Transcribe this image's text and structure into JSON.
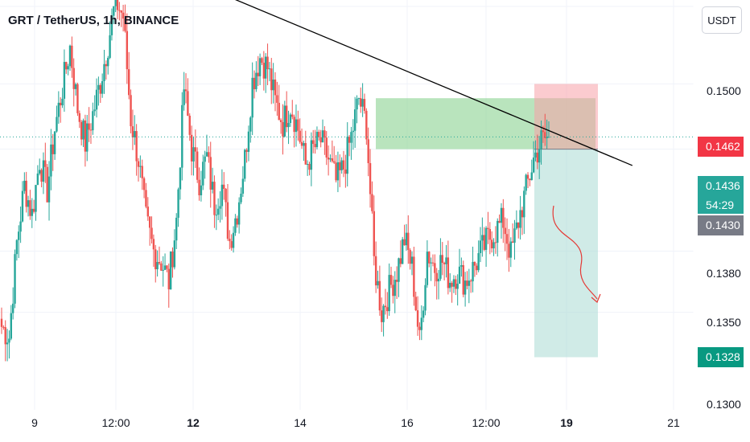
{
  "header": {
    "title": "GRT / TetherUS, 1h, BINANCE",
    "currency": "USDT"
  },
  "colors": {
    "up": "#26a69a",
    "down": "#ef5350",
    "trendline": "#000000",
    "arrow": "#e53935",
    "stop_zone": "#f7a1a8",
    "target_zone": "#a9dad3",
    "entry_zone": "#93d59a"
  },
  "price_labels": {
    "stop": "0.1462",
    "last": "0.1436",
    "countdown": "54:29",
    "entry": "0.1430",
    "target": "0.1328"
  },
  "chart_data": {
    "type": "candlestick",
    "title": "GRT / TetherUS, 1h, BINANCE",
    "x_ticks": [
      {
        "label": "9",
        "bold": false
      },
      {
        "label": "12:00",
        "bold": false
      },
      {
        "label": "12",
        "bold": true
      },
      {
        "label": "14",
        "bold": false
      },
      {
        "label": "16",
        "bold": false
      },
      {
        "label": "12:00",
        "bold": false
      },
      {
        "label": "19",
        "bold": true
      },
      {
        "label": "21",
        "bold": false
      }
    ],
    "y_ticks": [
      "0.1500",
      "0.1380",
      "0.1350",
      "0.1300"
    ],
    "ylim": [
      0.13,
      0.152
    ],
    "grid": true,
    "anchor_closes": [
      0.1343,
      0.1338,
      0.1384,
      0.1412,
      0.1398,
      0.1425,
      0.141,
      0.144,
      0.146,
      0.148,
      0.145,
      0.1433,
      0.1447,
      0.1463,
      0.1482,
      0.1503,
      0.1495,
      0.1445,
      0.1425,
      0.1395,
      0.138,
      0.1375,
      0.1365,
      0.1395,
      0.146,
      0.143,
      0.1415,
      0.1426,
      0.1403,
      0.1412,
      0.1385,
      0.14,
      0.1425,
      0.1463,
      0.1475,
      0.147,
      0.1453,
      0.1443,
      0.1452,
      0.144,
      0.1422,
      0.143,
      0.1434,
      0.1425,
      0.1414,
      0.1421,
      0.1436,
      0.1455,
      0.1442,
      0.1375,
      0.135,
      0.1361,
      0.137,
      0.1386,
      0.1372,
      0.1335,
      0.138,
      0.1372,
      0.1375,
      0.1366,
      0.137,
      0.1365,
      0.1371,
      0.1379,
      0.1386,
      0.139,
      0.1395,
      0.1378,
      0.1395,
      0.141,
      0.1425,
      0.1434,
      0.1436
    ],
    "trendline": {
      "from": {
        "x_frac": 0.2395,
        "price": 0.1518
      },
      "to": {
        "x_frac": 0.9115,
        "price": 0.1422
      }
    },
    "position": {
      "entry": 0.143,
      "stop": 0.1462,
      "target": 0.1328,
      "entry_zone": [
        0.143,
        0.1455
      ]
    },
    "last_price": 0.1436,
    "countdown": "54:29"
  }
}
